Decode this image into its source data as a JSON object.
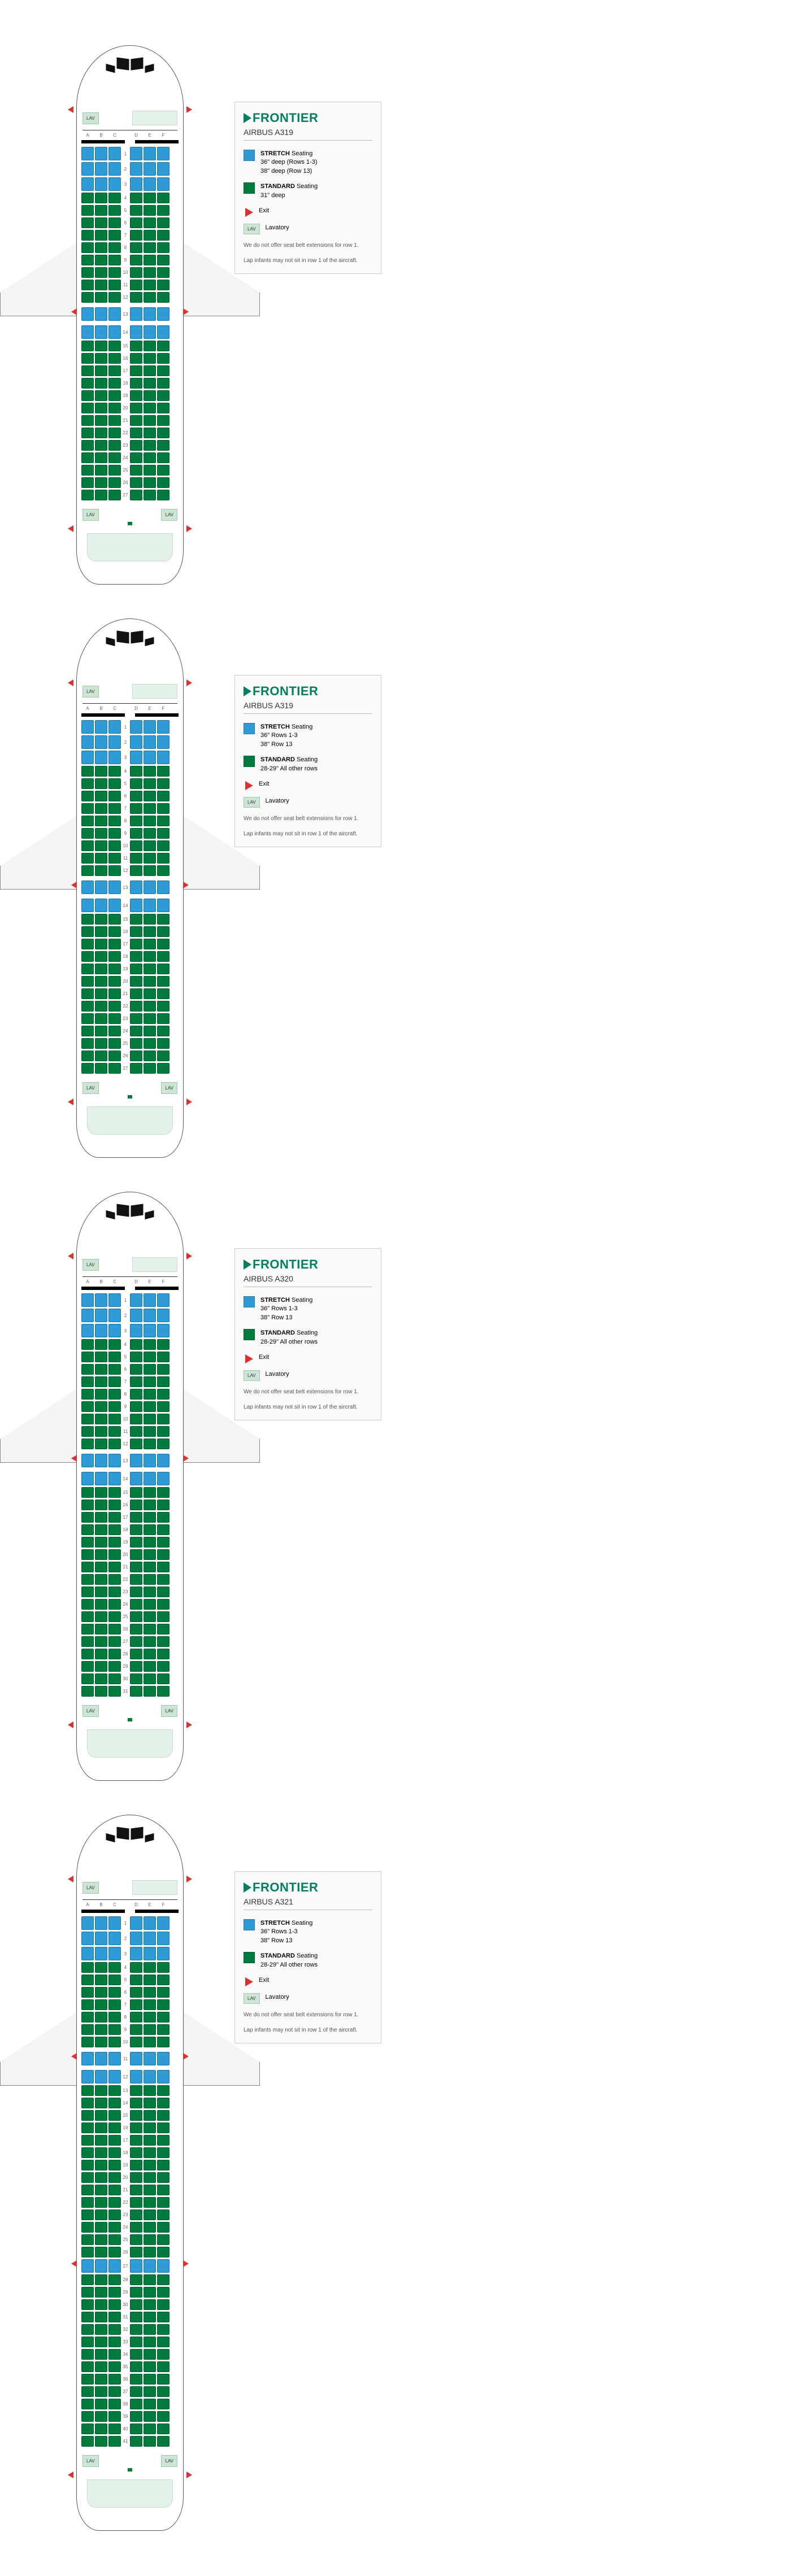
{
  "brand": "FRONTIER",
  "colors": {
    "stretch": "#2e9bd6",
    "standard": "#007a3d",
    "lav": "#cde5d4",
    "galley": "#e4f1e8",
    "exit": "#d63333",
    "brand": "#008060",
    "black": "#111111"
  },
  "legend_labels": {
    "stretch_title": "STRETCH",
    "standard_title": "STANDARD",
    "seating_word": "Seating",
    "exit": "Exit",
    "lav": "Lavatory",
    "lav_short": "LAV",
    "note1": "We do not offer seat belt extensions for row 1.",
    "note2": "Lap infants may not sit in row 1 of the aircraft."
  },
  "col_labels": [
    "A",
    "B",
    "C",
    "D",
    "E",
    "F"
  ],
  "planes": [
    {
      "name": "AIRBUS A319",
      "stretch_details": "36\" deep (Rows 1-3)\n38\" deep (Row 13)",
      "standard_details": "31\" deep",
      "rows": 27,
      "stretch_rows": [
        1,
        2,
        3,
        13,
        14
      ],
      "wing_exit_before": 13,
      "extra_at": 13,
      "exit_rows_front": true,
      "exit_rows_rear": true,
      "extra_rear_exits": []
    },
    {
      "name": "AIRBUS A319",
      "stretch_details": "36\" Rows 1-3\n38\" Row 13",
      "standard_details": "28-29\" All other rows",
      "rows": 27,
      "stretch_rows": [
        1,
        2,
        3,
        13,
        14
      ],
      "wing_exit_before": 13,
      "extra_at": 13,
      "exit_rows_front": true,
      "exit_rows_rear": true,
      "extra_rear_exits": []
    },
    {
      "name": "AIRBUS A320",
      "stretch_details": "36\" Rows 1-3\n38\" Row 13",
      "standard_details": "28-29\" All other rows",
      "rows": 31,
      "stretch_rows": [
        1,
        2,
        3,
        13,
        14
      ],
      "wing_exit_before": 13,
      "extra_at": 13,
      "exit_rows_front": true,
      "exit_rows_rear": true,
      "extra_rear_exits": []
    },
    {
      "name": "AIRBUS A321",
      "stretch_details": "36\" Rows 1-3\n38\" Row 13",
      "standard_details": "28-29\" All other rows",
      "rows": 41,
      "stretch_rows": [
        1,
        2,
        3,
        11,
        12,
        27
      ],
      "wing_exit_before": 11,
      "extra_at": 11,
      "exit_rows_front": true,
      "exit_rows_rear": true,
      "extra_rear_exits": [
        27
      ]
    }
  ]
}
